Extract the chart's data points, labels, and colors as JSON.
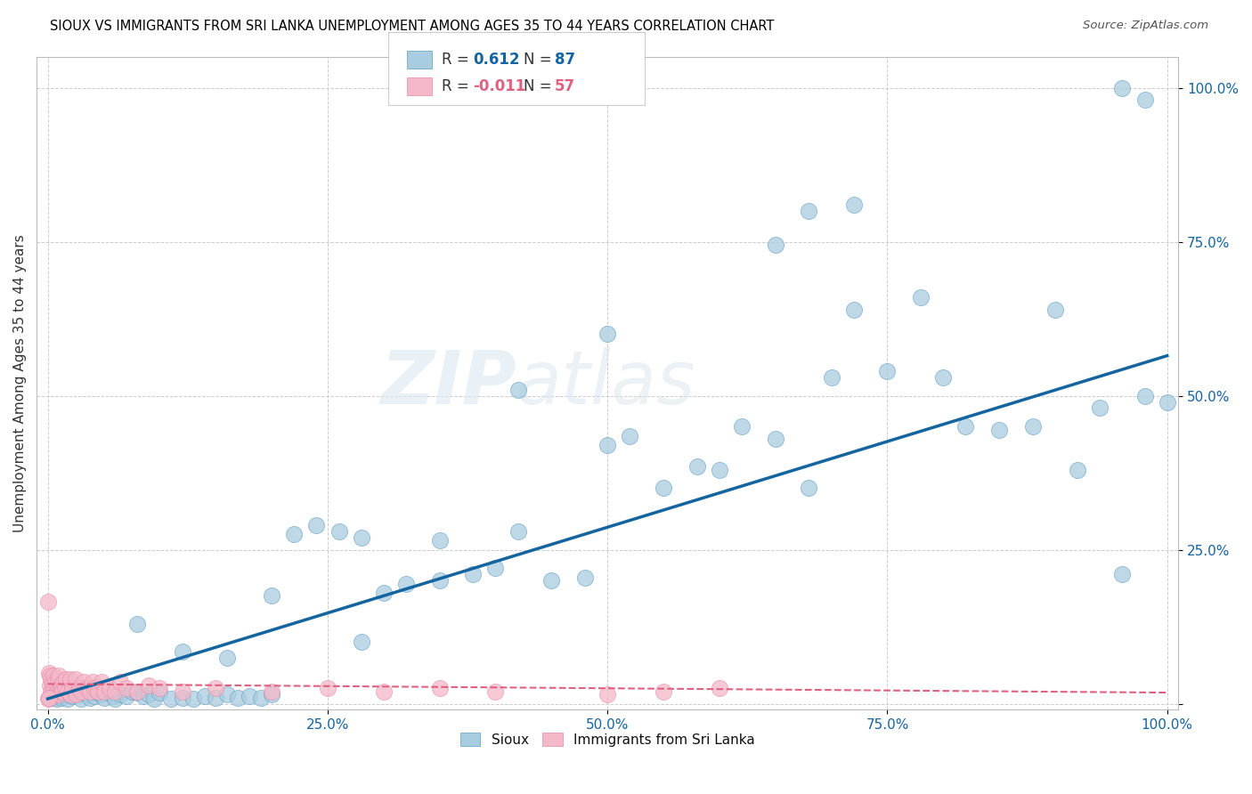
{
  "title": "SIOUX VS IMMIGRANTS FROM SRI LANKA UNEMPLOYMENT AMONG AGES 35 TO 44 YEARS CORRELATION CHART",
  "source": "Source: ZipAtlas.com",
  "ylabel": "Unemployment Among Ages 35 to 44 years",
  "xlim": [
    -0.01,
    1.01
  ],
  "ylim": [
    -0.01,
    1.05
  ],
  "xticks": [
    0.0,
    0.25,
    0.5,
    0.75,
    1.0
  ],
  "yticks": [
    0.0,
    0.25,
    0.5,
    0.75,
    1.0
  ],
  "xticklabels": [
    "0.0%",
    "25.0%",
    "50.0%",
    "75.0%",
    "100.0%"
  ],
  "yticklabels": [
    "",
    "25.0%",
    "50.0%",
    "75.0%",
    "100.0%"
  ],
  "blue_color": "#a8cce0",
  "pink_color": "#f4b8c8",
  "blue_edge_color": "#5a9cbf",
  "pink_edge_color": "#e888a8",
  "blue_line_color": "#1464a0",
  "pink_line_color": "#e06080",
  "sioux_label": "Sioux",
  "sri_label": "Immigrants from Sri Lanka",
  "blue_r": "0.612",
  "blue_n": "87",
  "pink_r": "-0.011",
  "pink_n": "57",
  "sioux_x": [
    0.005,
    0.008,
    0.01,
    0.012,
    0.015,
    0.018,
    0.02,
    0.022,
    0.025,
    0.028,
    0.03,
    0.032,
    0.035,
    0.038,
    0.04,
    0.042,
    0.045,
    0.048,
    0.05,
    0.055,
    0.058,
    0.06,
    0.065,
    0.07,
    0.075,
    0.08,
    0.085,
    0.09,
    0.095,
    0.1,
    0.11,
    0.12,
    0.13,
    0.14,
    0.15,
    0.16,
    0.17,
    0.18,
    0.19,
    0.2,
    0.22,
    0.24,
    0.26,
    0.28,
    0.3,
    0.32,
    0.35,
    0.38,
    0.4,
    0.42,
    0.45,
    0.48,
    0.5,
    0.52,
    0.55,
    0.58,
    0.6,
    0.62,
    0.65,
    0.68,
    0.7,
    0.72,
    0.75,
    0.78,
    0.8,
    0.82,
    0.85,
    0.88,
    0.9,
    0.92,
    0.94,
    0.96,
    0.98,
    1.0,
    0.98,
    0.96,
    0.72,
    0.68,
    0.65,
    0.5,
    0.42,
    0.35,
    0.28,
    0.2,
    0.16,
    0.12,
    0.08
  ],
  "sioux_y": [
    0.01,
    0.008,
    0.012,
    0.01,
    0.015,
    0.008,
    0.02,
    0.012,
    0.018,
    0.015,
    0.008,
    0.018,
    0.015,
    0.01,
    0.02,
    0.012,
    0.018,
    0.015,
    0.01,
    0.018,
    0.012,
    0.008,
    0.015,
    0.012,
    0.02,
    0.018,
    0.012,
    0.015,
    0.008,
    0.018,
    0.008,
    0.01,
    0.008,
    0.012,
    0.01,
    0.015,
    0.01,
    0.012,
    0.01,
    0.015,
    0.275,
    0.29,
    0.28,
    0.27,
    0.18,
    0.195,
    0.2,
    0.21,
    0.22,
    0.28,
    0.2,
    0.205,
    0.42,
    0.435,
    0.35,
    0.385,
    0.38,
    0.45,
    0.43,
    0.35,
    0.53,
    0.64,
    0.54,
    0.66,
    0.53,
    0.45,
    0.445,
    0.45,
    0.64,
    0.38,
    0.48,
    0.21,
    0.5,
    0.49,
    0.98,
    1.0,
    0.81,
    0.8,
    0.745,
    0.6,
    0.51,
    0.265,
    0.1,
    0.175,
    0.075,
    0.085,
    0.13
  ],
  "sri_lanka_x": [
    0.0,
    0.001,
    0.002,
    0.002,
    0.003,
    0.003,
    0.004,
    0.004,
    0.005,
    0.005,
    0.006,
    0.007,
    0.008,
    0.009,
    0.01,
    0.01,
    0.011,
    0.012,
    0.013,
    0.014,
    0.015,
    0.016,
    0.018,
    0.02,
    0.02,
    0.022,
    0.025,
    0.025,
    0.028,
    0.03,
    0.032,
    0.035,
    0.038,
    0.04,
    0.042,
    0.045,
    0.048,
    0.05,
    0.055,
    0.06,
    0.065,
    0.07,
    0.08,
    0.09,
    0.1,
    0.12,
    0.15,
    0.2,
    0.25,
    0.3,
    0.35,
    0.4,
    0.5,
    0.55,
    0.6,
    0.0,
    0.001
  ],
  "sri_lanka_y": [
    0.165,
    0.05,
    0.03,
    0.045,
    0.02,
    0.04,
    0.025,
    0.035,
    0.015,
    0.045,
    0.025,
    0.035,
    0.02,
    0.04,
    0.015,
    0.045,
    0.025,
    0.03,
    0.02,
    0.035,
    0.025,
    0.04,
    0.02,
    0.015,
    0.04,
    0.025,
    0.015,
    0.04,
    0.025,
    0.02,
    0.035,
    0.025,
    0.02,
    0.035,
    0.025,
    0.02,
    0.035,
    0.02,
    0.025,
    0.02,
    0.035,
    0.025,
    0.02,
    0.03,
    0.025,
    0.02,
    0.025,
    0.02,
    0.025,
    0.02,
    0.025,
    0.02,
    0.015,
    0.02,
    0.025,
    0.008,
    0.01
  ],
  "blue_trend_x": [
    0.0,
    1.0
  ],
  "blue_trend_y": [
    0.008,
    0.565
  ],
  "pink_trend_x": [
    0.0,
    1.0
  ],
  "pink_trend_y": [
    0.032,
    0.018
  ]
}
